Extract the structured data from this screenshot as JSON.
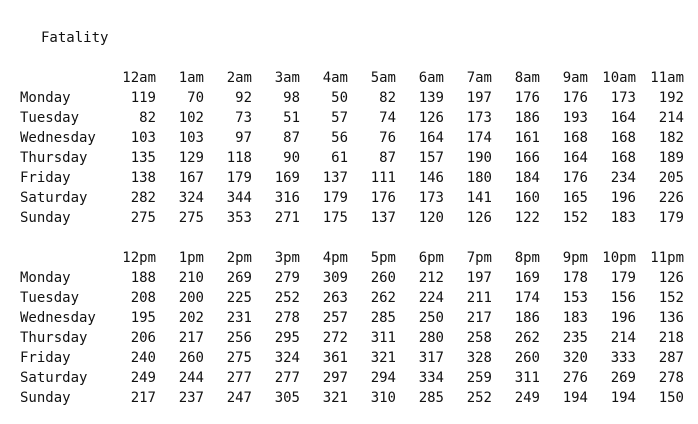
{
  "title": "Fatality",
  "days": [
    "Monday",
    "Tuesday",
    "Wednesday",
    "Thursday",
    "Friday",
    "Saturday",
    "Sunday"
  ],
  "blocks": [
    {
      "id": "am",
      "hours": [
        "12am",
        "1am",
        "2am",
        "3am",
        "4am",
        "5am",
        "6am",
        "7am",
        "8am",
        "9am",
        "10am",
        "11am"
      ],
      "rows": [
        [
          119,
          70,
          92,
          98,
          50,
          82,
          139,
          197,
          176,
          176,
          173,
          192
        ],
        [
          82,
          102,
          73,
          51,
          57,
          74,
          126,
          173,
          186,
          193,
          164,
          214
        ],
        [
          103,
          103,
          97,
          87,
          56,
          76,
          164,
          174,
          161,
          168,
          168,
          182
        ],
        [
          135,
          129,
          118,
          90,
          61,
          87,
          157,
          190,
          166,
          164,
          168,
          189
        ],
        [
          138,
          167,
          179,
          169,
          137,
          111,
          146,
          180,
          184,
          176,
          234,
          205
        ],
        [
          282,
          324,
          344,
          316,
          179,
          176,
          173,
          141,
          160,
          165,
          196,
          226
        ],
        [
          275,
          275,
          353,
          271,
          175,
          137,
          120,
          126,
          122,
          152,
          183,
          179
        ]
      ]
    },
    {
      "id": "pm",
      "hours": [
        "12pm",
        "1pm",
        "2pm",
        "3pm",
        "4pm",
        "5pm",
        "6pm",
        "7pm",
        "8pm",
        "9pm",
        "10pm",
        "11pm"
      ],
      "rows": [
        [
          188,
          210,
          269,
          279,
          309,
          260,
          212,
          197,
          169,
          178,
          179,
          126
        ],
        [
          208,
          200,
          225,
          252,
          263,
          262,
          224,
          211,
          174,
          153,
          156,
          152
        ],
        [
          195,
          202,
          231,
          278,
          257,
          285,
          250,
          217,
          186,
          183,
          196,
          136
        ],
        [
          206,
          217,
          256,
          295,
          272,
          311,
          280,
          258,
          262,
          235,
          214,
          218
        ],
        [
          240,
          260,
          275,
          324,
          361,
          321,
          317,
          328,
          260,
          320,
          333,
          287
        ],
        [
          249,
          244,
          277,
          277,
          297,
          294,
          334,
          259,
          311,
          276,
          269,
          278
        ],
        [
          217,
          237,
          247,
          305,
          321,
          310,
          285,
          252,
          249,
          194,
          194,
          150
        ]
      ]
    }
  ]
}
